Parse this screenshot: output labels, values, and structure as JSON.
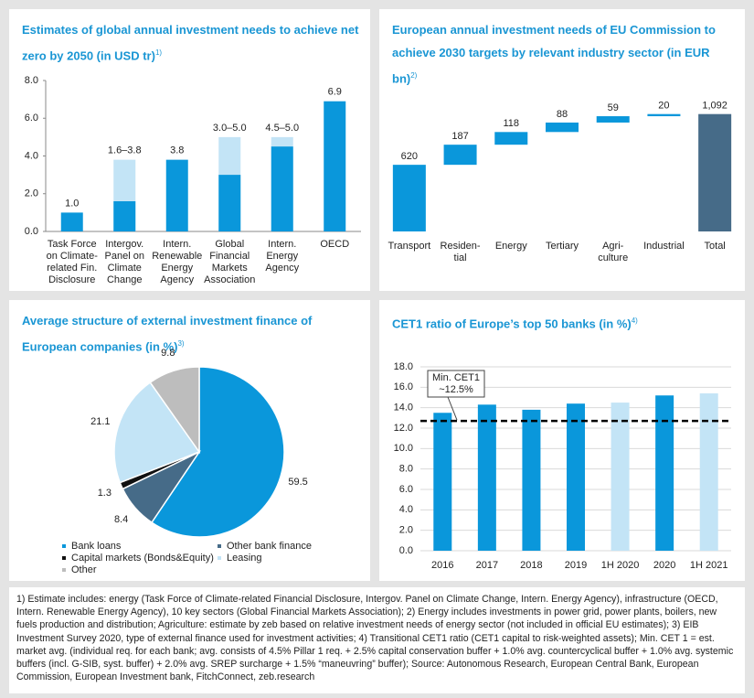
{
  "chart_data": [
    {
      "type": "range_bar",
      "title": "Estimates of global annual investment needs to achieve net zero by 2050 (in USD tr)",
      "title_note": "1)",
      "categories": [
        [
          "Task Force",
          "on Climate-",
          "related Fin.",
          "Disclosure"
        ],
        [
          "Intergov.",
          "Panel on",
          "Climate",
          "Change"
        ],
        [
          "Intern.",
          "Renewable",
          "Energy",
          "Agency"
        ],
        [
          "Global",
          "Financial",
          "Markets",
          "Association"
        ],
        [
          "Intern.",
          "Energy",
          "Agency"
        ],
        [
          "OECD"
        ]
      ],
      "values": [
        1.0,
        1.6,
        3.8,
        3.0,
        4.5,
        6.9
      ],
      "high_values": [
        null,
        3.8,
        null,
        5.0,
        5.0,
        null
      ],
      "value_labels": [
        "1.0",
        "1.6–3.8",
        "3.8",
        "3.0–5.0",
        "4.5–5.0",
        "6.9"
      ],
      "color": "#0a97db",
      "range_color": "#c3e4f6",
      "ylim": [
        0,
        8
      ],
      "yticks": [
        {
          "value": 0,
          "label": "0.0"
        },
        {
          "value": 2,
          "label": "2.0"
        },
        {
          "value": 4,
          "label": "4.0"
        },
        {
          "value": 6,
          "label": "6.0"
        },
        {
          "value": 8,
          "label": "8.0"
        }
      ]
    },
    {
      "type": "waterfall",
      "title": "European annual investment needs of EU Commission to achieve 2030 targets by relevant industry sector (in EUR bn)",
      "title_note": "2)",
      "categories": [
        [
          "Transport"
        ],
        [
          "Residen-",
          "tial"
        ],
        [
          "Energy"
        ],
        [
          "Tertiary"
        ],
        [
          "Agri-",
          "culture"
        ],
        [
          "Industrial"
        ],
        [
          "Total"
        ]
      ],
      "values": [
        620,
        187,
        118,
        88,
        59,
        20,
        1092
      ],
      "value_labels": [
        "620",
        "187",
        "118",
        "88",
        "59",
        "20",
        "1,092"
      ],
      "last_is_total": true,
      "color": "#0a97db",
      "total_color": "#466b88",
      "ylim": [
        0,
        1200
      ]
    },
    {
      "type": "pie",
      "title": "Average structure of external investment finance of European companies (in %)",
      "title_note": "3)",
      "categories": [
        "Bank loans",
        "Other bank finance",
        "Capital markets (Bonds&Equity)",
        "Leasing",
        "Other"
      ],
      "values": [
        59.5,
        8.4,
        1.3,
        21.1,
        9.8
      ],
      "colors": [
        "#0a97db",
        "#466b88",
        "#111111",
        "#c3e4f6",
        "#bdbdbd"
      ]
    },
    {
      "type": "bar",
      "title": "CET1 ratio of Europe’s top 50 banks (in %)",
      "title_note": "4)",
      "categories": [
        "2016",
        "2017",
        "2018",
        "2019",
        "1H 2020",
        "2020",
        "1H 2021"
      ],
      "values": [
        13.5,
        14.3,
        13.8,
        14.4,
        14.5,
        15.2,
        15.4
      ],
      "colors": [
        "#0a97db",
        "#0a97db",
        "#0a97db",
        "#0a97db",
        "#c3e4f6",
        "#0a97db",
        "#c3e4f6"
      ],
      "reference_line": 12.7,
      "annotation": [
        "Min. CET1",
        "~12.5%"
      ],
      "grid": true,
      "ylim": [
        0,
        18
      ],
      "yticks": [
        {
          "value": 0,
          "label": "0.0"
        },
        {
          "value": 2,
          "label": "2.0"
        },
        {
          "value": 4,
          "label": "4.0"
        },
        {
          "value": 6,
          "label": "6.0"
        },
        {
          "value": 8,
          "label": "8.0"
        },
        {
          "value": 10,
          "label": "10.0"
        },
        {
          "value": 12,
          "label": "12.0"
        },
        {
          "value": 14,
          "label": "14.0"
        },
        {
          "value": 16,
          "label": "16.0"
        },
        {
          "value": 18,
          "label": "18.0"
        }
      ]
    }
  ],
  "footnote": "1) Estimate includes: energy (Task Force of Climate-related Financial Disclosure, Intergov. Panel on Climate Change, Intern. Energy Agency), infrastructure (OECD, Intern. Renewable Energy Agency), 10 key sectors (Global Financial Markets Association); 2) Energy includes investments in power grid, power plants, boilers, new fuels production and distribution; Agriculture: estimate by zeb based on relative investment needs of energy sector (not included in official EU estimates); 3) EIB Investment Survey 2020, type of external finance used for investment activities; 4) Transitional CET1 ratio (CET1 capital to risk-weighted assets); Min. CET 1 = est. market avg. (individual req. for each bank; avg. consists of 4.5% Pillar 1 req. + 2.5% capital conservation buffer + 1.0% avg. countercyclical buffer + 1.0% avg. systemic buffers (incl. G-SIB, syst. buffer) + 2.0% avg. SREP surcharge + 1.5% “maneuvring” buffer); Source: Autonomous Research, European Central Bank, European Commission, European Investment bank, FitchConnect, zeb.research"
}
